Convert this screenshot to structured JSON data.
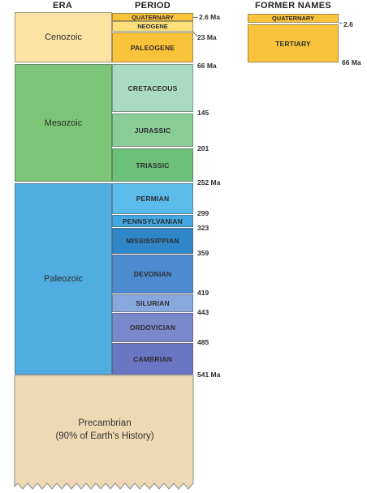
{
  "headers": {
    "era": "ERA",
    "period": "PERIOD",
    "former_names": "FORMER NAMES"
  },
  "eras": {
    "cenozoic": "Cenozoic",
    "mesozoic": "Mesozoic",
    "paleozoic": "Paleozoic",
    "precambrian": "Precambrian",
    "precambrian_note": "(90% of Earth's History)"
  },
  "periods": {
    "quaternary": "QUATERNARY",
    "neogene": "NEOGENE",
    "paleogene": "PALEOGENE",
    "cretaceous": "CRETACEOUS",
    "jurassic": "JURASSIC",
    "triassic": "TRIASSIC",
    "permian": "PERMIAN",
    "pennsylvanian": "PENNSYLVANIAN",
    "mississippian": "MISSISSIPPIAN",
    "devonian": "DEVONIAN",
    "silurian": "SILURIAN",
    "ordovician": "ORDOVICIAN",
    "cambrian": "CAMBRIAN"
  },
  "ages": {
    "a2_6": "2.6 Ma",
    "a23": "23 Ma",
    "a66": "66 Ma",
    "a145": "145",
    "a201": "201",
    "a252": "252 Ma",
    "a299": "299",
    "a323": "323",
    "a359": "359",
    "a419": "419",
    "a443": "443",
    "a485": "485",
    "a541": "541 Ma"
  },
  "former": {
    "quaternary": "QUATERNARY",
    "tertiary": "TERTIARY",
    "age_2_6": "2.6",
    "age_66": "66 Ma"
  },
  "colors": {
    "cenozoic_era": "#fbe3a3",
    "cenozoic_period": "#f9c33b",
    "mesozoic_era": "#7cc576",
    "paleozoic_era": "#4fade0",
    "precambrian": "#efd9b5"
  }
}
